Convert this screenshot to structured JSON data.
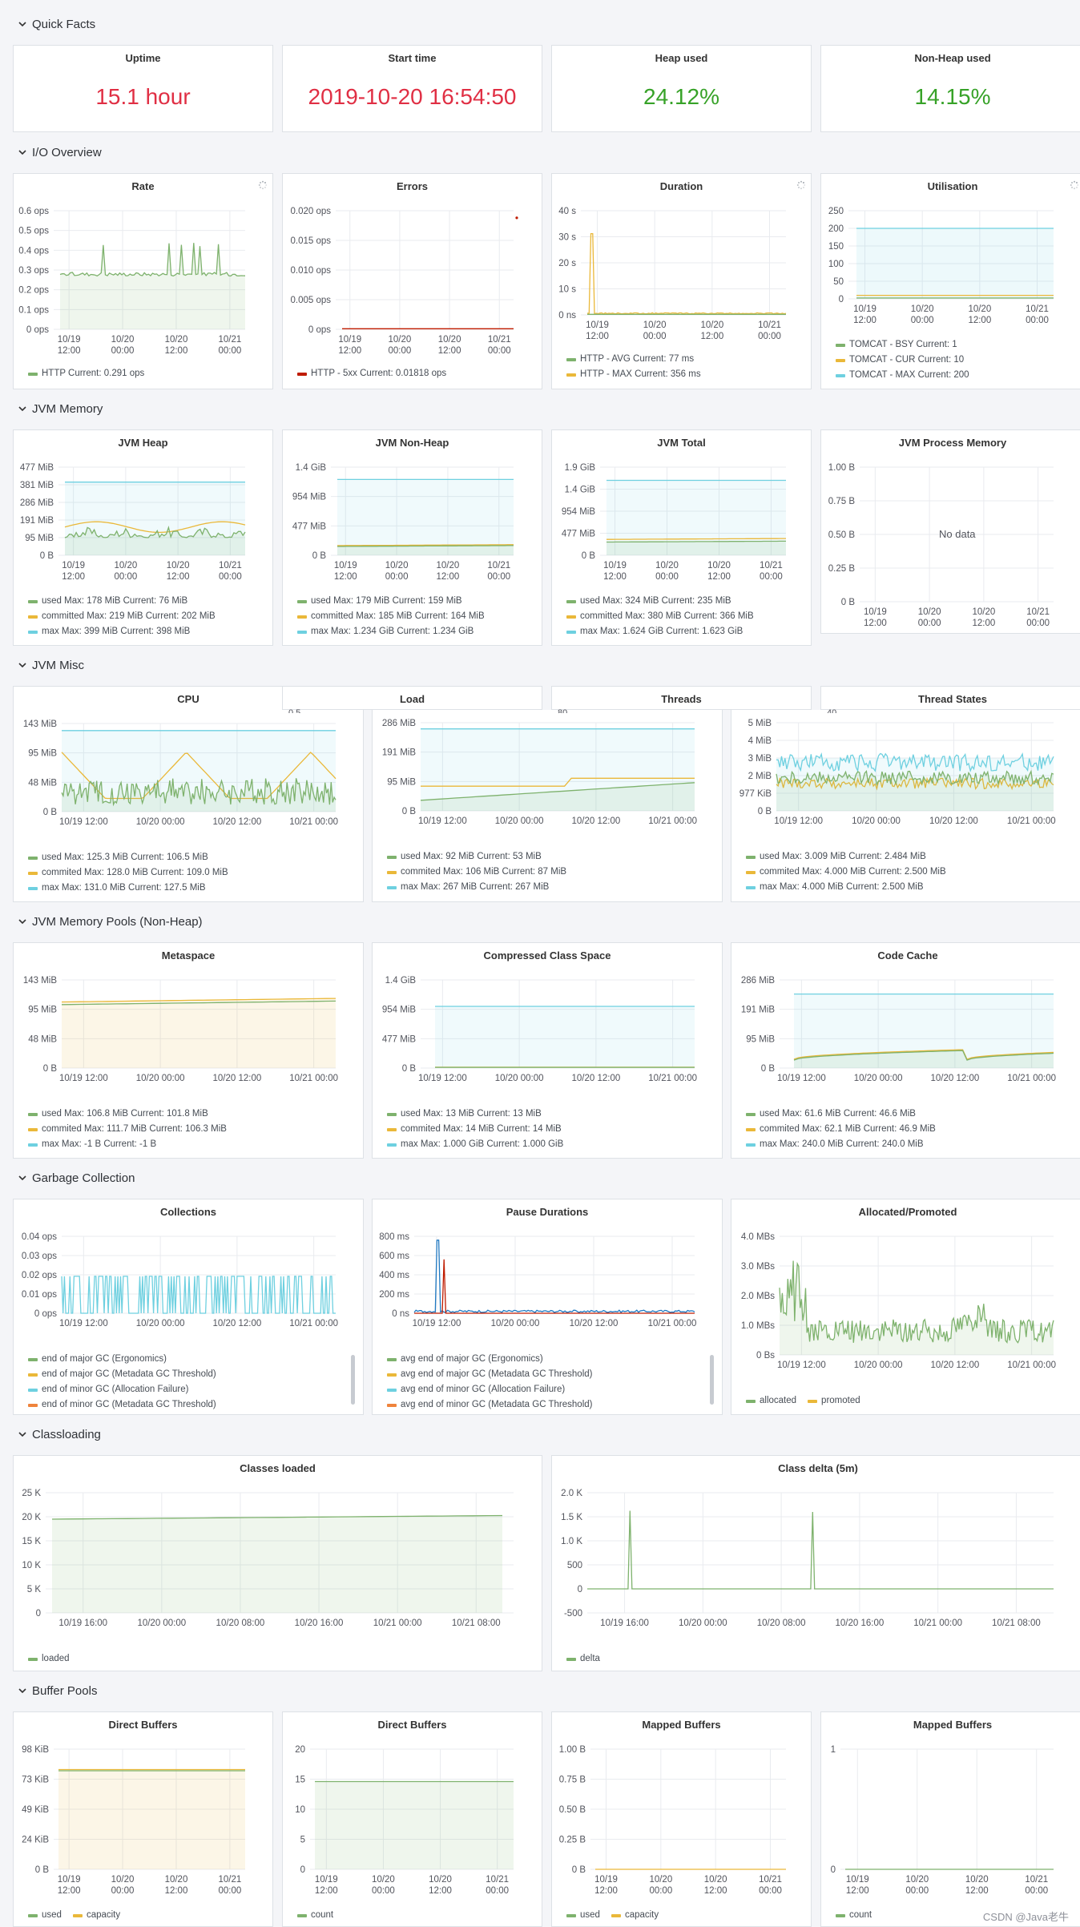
{
  "rows": {
    "quick_facts": "Quick Facts",
    "io_overview": "I/O Overview",
    "jvm_memory": "JVM Memory",
    "jvm_misc": "JVM Misc",
    "jvm_pools": "JVM Memory Pools (Non-Heap)",
    "gc": "Garbage Collection",
    "classloading": "Classloading",
    "buffer_pools": "Buffer Pools"
  },
  "colors": {
    "green": "#7eb26d",
    "yellow": "#eab839",
    "cyan": "#6ed0e0",
    "red": "#bf1b00",
    "orange": "#ef843c",
    "blue": "#1f78c1",
    "purple": "#705da0"
  },
  "stats": [
    {
      "title": "Uptime",
      "value": "15.1 hour",
      "color": "red"
    },
    {
      "title": "Start time",
      "value": "2019-10-20 16:54:50",
      "color": "red"
    },
    {
      "title": "Heap used",
      "value": "24.12%",
      "color": "green"
    },
    {
      "title": "Non-Heap used",
      "value": "14.15%",
      "color": "green"
    }
  ],
  "ticks": {
    "x4": [
      "10/19\n12:00",
      "10/20\n00:00",
      "10/20\n12:00",
      "10/21\n00:00"
    ],
    "x4w": [
      "10/19 12:00",
      "10/20 00:00",
      "10/20 12:00",
      "10/21 00:00"
    ],
    "x7": [
      "10/19 16:00",
      "10/20 00:00",
      "10/20 08:00",
      "10/20 16:00",
      "10/21 00:00",
      "10/21 08:00"
    ]
  },
  "panels": {
    "rate": {
      "title": "Rate",
      "y": [
        "0.6 ops",
        "0.5 ops",
        "0.4 ops",
        "0.3 ops",
        "0.2 ops",
        "0.1 ops",
        "0 ops"
      ],
      "legend": [
        {
          "c": "green",
          "t": "HTTP  Current: 0.291 ops"
        }
      ]
    },
    "errors": {
      "title": "Errors",
      "y": [
        "0.020 ops",
        "0.015 ops",
        "0.010 ops",
        "0.005 ops",
        "0 ops"
      ],
      "legend": [
        {
          "c": "red",
          "t": "HTTP - 5xx  Current: 0.01818 ops"
        }
      ]
    },
    "duration": {
      "title": "Duration",
      "y": [
        "40 s",
        "30 s",
        "20 s",
        "10 s",
        "0 ns"
      ],
      "legend": [
        {
          "c": "green",
          "t": "HTTP - AVG  Current: 77 ms"
        },
        {
          "c": "yellow",
          "t": "HTTP - MAX  Current: 356 ms"
        }
      ]
    },
    "util": {
      "title": "Utilisation",
      "y": [
        "250",
        "200",
        "150",
        "100",
        "50",
        "0"
      ],
      "legend": [
        {
          "c": "green",
          "t": "TOMCAT - BSY  Current: 1"
        },
        {
          "c": "yellow",
          "t": "TOMCAT - CUR  Current: 10"
        },
        {
          "c": "cyan",
          "t": "TOMCAT - MAX  Current: 200"
        }
      ]
    },
    "heap": {
      "title": "JVM Heap",
      "y": [
        "477 MiB",
        "381 MiB",
        "286 MiB",
        "191 MiB",
        "95 MiB",
        "0 B"
      ],
      "legend": [
        {
          "c": "green",
          "t": "used  Max: 178 MiB  Current: 76 MiB"
        },
        {
          "c": "yellow",
          "t": "committed  Max: 219 MiB  Current: 202 MiB"
        },
        {
          "c": "cyan",
          "t": "max  Max: 399 MiB  Current: 398 MiB"
        }
      ]
    },
    "nonheap": {
      "title": "JVM Non-Heap",
      "y": [
        "1.4 GiB",
        "954 MiB",
        "477 MiB",
        "0 B"
      ],
      "legend": [
        {
          "c": "green",
          "t": "used  Max: 179 MiB  Current: 159 MiB"
        },
        {
          "c": "yellow",
          "t": "committed  Max: 185 MiB  Current: 164 MiB"
        },
        {
          "c": "cyan",
          "t": "max  Max: 1.234 GiB  Current: 1.234 GiB"
        }
      ]
    },
    "total": {
      "title": "JVM Total",
      "y": [
        "1.9 GiB",
        "1.4 GiB",
        "954 MiB",
        "477 MiB",
        "0 B"
      ],
      "legend": [
        {
          "c": "green",
          "t": "used  Max: 324 MiB  Current: 235 MiB"
        },
        {
          "c": "yellow",
          "t": "committed  Max: 380 MiB  Current: 366 MiB"
        },
        {
          "c": "cyan",
          "t": "max  Max: 1.624 GiB  Current: 1.623 GiB"
        }
      ]
    },
    "procmem": {
      "title": "JVM Process Memory",
      "y": [
        "1.00 B",
        "0.75 B",
        "0.50 B",
        "0.25 B",
        "0 B"
      ],
      "nodata": "No data"
    },
    "cpu": {
      "title": "CPU",
      "y": [
        "143 MiB",
        "95 MiB",
        "48 MiB",
        "0 B"
      ],
      "legend": [
        {
          "c": "green",
          "t": "used  Max: 125.3 MiB  Current: 106.5 MiB"
        },
        {
          "c": "yellow",
          "t": "commited  Max: 128.0 MiB  Current: 109.0 MiB"
        },
        {
          "c": "cyan",
          "t": "max  Max: 131.0 MiB  Current: 127.5 MiB"
        }
      ]
    },
    "load": {
      "title": "Load",
      "y": [
        "286 MiB",
        "191 MiB",
        "95 MiB",
        "0 B"
      ],
      "legend": [
        {
          "c": "green",
          "t": "used  Max: 92 MiB  Current: 53 MiB"
        },
        {
          "c": "yellow",
          "t": "commited  Max: 106 MiB  Current: 87 MiB"
        },
        {
          "c": "cyan",
          "t": "max  Max: 267 MiB  Current: 267 MiB"
        }
      ]
    },
    "threads": {
      "title": "Threads"
    },
    "tstates": {
      "title": "Thread States",
      "y": [
        "5 MiB",
        "4 MiB",
        "3 MiB",
        "2 MiB",
        "977 KiB",
        "0 B"
      ],
      "legend": [
        {
          "c": "green",
          "t": "used  Max: 3.009 MiB  Current: 2.484 MiB"
        },
        {
          "c": "yellow",
          "t": "commited  Max: 4.000 MiB  Current: 2.500 MiB"
        },
        {
          "c": "cyan",
          "t": "max  Max: 4.000 MiB  Current: 2.500 MiB"
        }
      ]
    },
    "meta": {
      "title": "Metaspace",
      "y": [
        "143 MiB",
        "95 MiB",
        "48 MiB",
        "0 B"
      ],
      "legend": [
        {
          "c": "green",
          "t": "used  Max: 106.8 MiB  Current: 101.8 MiB"
        },
        {
          "c": "yellow",
          "t": "commited  Max: 111.7 MiB  Current: 106.3 MiB"
        },
        {
          "c": "cyan",
          "t": "max  Max: -1 B  Current: -1 B"
        }
      ]
    },
    "ccs": {
      "title": "Compressed Class Space",
      "y": [
        "1.4 GiB",
        "954 MiB",
        "477 MiB",
        "0 B"
      ],
      "legend": [
        {
          "c": "green",
          "t": "used  Max: 13 MiB  Current: 13 MiB"
        },
        {
          "c": "yellow",
          "t": "commited  Max: 14 MiB  Current: 14 MiB"
        },
        {
          "c": "cyan",
          "t": "max  Max: 1.000 GiB  Current: 1.000 GiB"
        }
      ]
    },
    "codecache": {
      "title": "Code Cache",
      "y": [
        "286 MiB",
        "191 MiB",
        "95 MiB",
        "0 B"
      ],
      "legend": [
        {
          "c": "green",
          "t": "used  Max: 61.6 MiB  Current: 46.6 MiB"
        },
        {
          "c": "yellow",
          "t": "commited  Max: 62.1 MiB  Current: 46.9 MiB"
        },
        {
          "c": "cyan",
          "t": "max  Max: 240.0 MiB  Current: 240.0 MiB"
        }
      ]
    },
    "collections": {
      "title": "Collections",
      "y": [
        "0.04 ops",
        "0.03 ops",
        "0.02 ops",
        "0.01 ops",
        "0 ops"
      ],
      "legend": [
        {
          "c": "green",
          "t": "end of major GC (Ergonomics)"
        },
        {
          "c": "yellow",
          "t": "end of major GC (Metadata GC Threshold)"
        },
        {
          "c": "cyan",
          "t": "end of minor GC (Allocation Failure)"
        },
        {
          "c": "orange",
          "t": "end of minor GC (Metadata GC Threshold)"
        }
      ]
    },
    "pause": {
      "title": "Pause Durations",
      "y": [
        "800 ms",
        "600 ms",
        "400 ms",
        "200 ms",
        "0 ns"
      ],
      "legend": [
        {
          "c": "green",
          "t": "avg end of major GC (Ergonomics)"
        },
        {
          "c": "yellow",
          "t": "avg end of major GC (Metadata GC Threshold)"
        },
        {
          "c": "cyan",
          "t": "avg end of minor GC (Allocation Failure)"
        },
        {
          "c": "orange",
          "t": "avg end of minor GC (Metadata GC Threshold)"
        }
      ]
    },
    "alloc": {
      "title": "Allocated/Promoted",
      "y": [
        "4.0 MBs",
        "3.0 MBs",
        "2.0 MBs",
        "1.0 MBs",
        "0 Bs"
      ],
      "legend": [
        {
          "c": "green",
          "t": "allocated"
        },
        {
          "c": "yellow",
          "t": "promoted"
        }
      ]
    },
    "classes": {
      "title": "Classes loaded",
      "y": [
        "25 K",
        "20 K",
        "15 K",
        "10 K",
        "5 K",
        "0"
      ],
      "legend": [
        {
          "c": "green",
          "t": "loaded"
        }
      ]
    },
    "cdelta": {
      "title": "Class delta (5m)",
      "y": [
        "2.0 K",
        "1.5 K",
        "1.0 K",
        "500",
        "0",
        "-500"
      ],
      "legend": [
        {
          "c": "green",
          "t": "delta"
        }
      ]
    },
    "dbuf1": {
      "title": "Direct Buffers",
      "y": [
        "98 KiB",
        "73 KiB",
        "49 KiB",
        "24 KiB",
        "0 B"
      ],
      "legend": [
        {
          "c": "green",
          "t": "used"
        },
        {
          "c": "yellow",
          "t": "capacity"
        }
      ]
    },
    "dbuf2": {
      "title": "Direct Buffers",
      "y": [
        "20",
        "15",
        "10",
        "5",
        "0"
      ],
      "legend": [
        {
          "c": "green",
          "t": "count"
        }
      ]
    },
    "mbuf1": {
      "title": "Mapped Buffers",
      "y": [
        "1.00 B",
        "0.75 B",
        "0.50 B",
        "0.25 B",
        "0 B"
      ],
      "legend": [
        {
          "c": "green",
          "t": "used"
        },
        {
          "c": "yellow",
          "t": "capacity"
        }
      ]
    },
    "mbuf2": {
      "title": "Mapped Buffers",
      "y": [
        "1",
        "0"
      ],
      "legend": [
        {
          "c": "green",
          "t": "count"
        }
      ]
    }
  },
  "partial_ticks": {
    "load": "0.5",
    "threads": "80",
    "tstates": "40"
  },
  "watermark": "CSDN @Java老牛"
}
